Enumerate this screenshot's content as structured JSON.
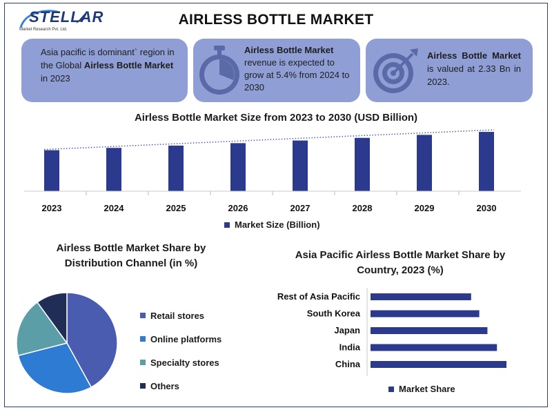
{
  "logo": {
    "name": "STELLAR",
    "sub": "Market Research Pvt. Ltd."
  },
  "title": "AIRLESS BOTTLE MARKET",
  "box1": {
    "pre": "Asia pacific is dominant` region in the Global ",
    "bold": "Airless Bottle Market",
    "post": " in 2023"
  },
  "box2": {
    "bold": "Airless Bottle Market",
    "post": " revenue is expected to grow at 5.4% from 2024 to 2030"
  },
  "box3": {
    "bold": "Airless Bottle Market",
    "post": " is valued at 2.33 Bn in 2023."
  },
  "icons": {
    "box2": "stopwatch-icon",
    "box3": "target-arrow-icon"
  },
  "colors": {
    "bar": "#2b3a8c",
    "box": "#8f9fd6",
    "pie": [
      "#4a5cb0",
      "#2e7bd4",
      "#5c9ea8",
      "#1f2d57"
    ]
  },
  "chart_data": [
    {
      "type": "bar",
      "title": "Airless Bottle Market Size from 2023 to 2030 (USD Billion)",
      "categories": [
        "2023",
        "2024",
        "2025",
        "2026",
        "2027",
        "2028",
        "2029",
        "2030"
      ],
      "series": [
        {
          "name": "Market Size (Billion)",
          "values": [
            2.33,
            2.46,
            2.59,
            2.73,
            2.88,
            3.03,
            3.2,
            3.37
          ]
        }
      ],
      "trendline": "dotted",
      "legend": "bottom"
    },
    {
      "type": "pie",
      "title": "Airless Bottle Market Share by Distribution Channel (in %)",
      "labels": [
        "Retail stores",
        "Online platforms",
        "Specialty stores",
        "Others"
      ],
      "values": [
        42,
        29,
        19,
        10
      ],
      "legend": "right"
    },
    {
      "type": "bar",
      "orientation": "horizontal",
      "title": "Asia Pacific Airless Bottle Market Share by Country, 2023 (%)",
      "categories": [
        "Rest of Asia Pacific",
        "South Korea",
        "Japan",
        "India",
        "China"
      ],
      "series": [
        {
          "name": "Market Share",
          "values": [
            74,
            80,
            86,
            93,
            100
          ]
        }
      ],
      "legend": "bottom"
    }
  ]
}
